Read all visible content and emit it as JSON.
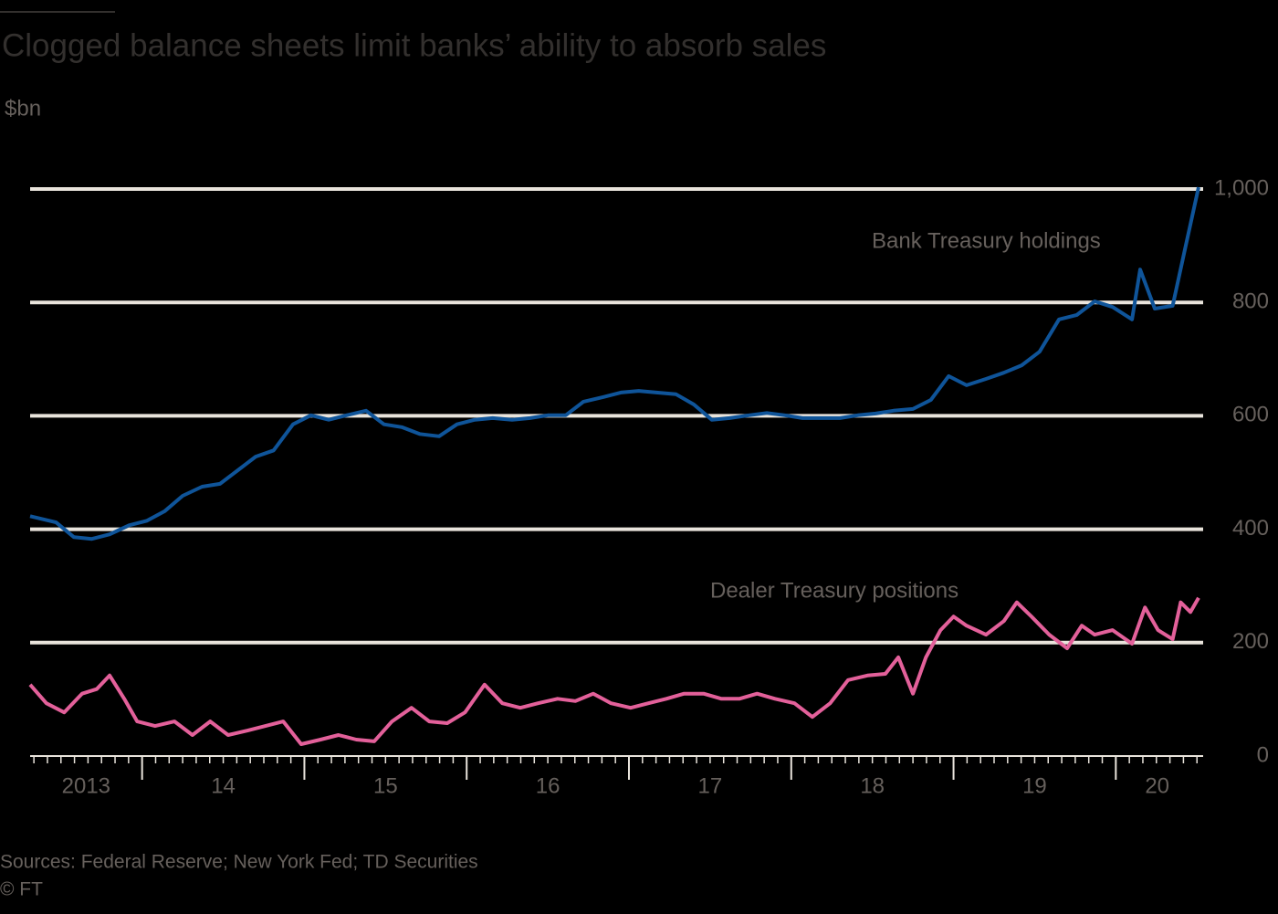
{
  "chart_data": {
    "type": "line",
    "title": "Clogged balance sheets limit banks’ ability to absorb sales",
    "y_label": "$bn",
    "source": "Sources: Federal Reserve; New York Fed; TD Securities",
    "credit": "© FT",
    "xlim": [
      2013.31,
      2020.51
    ],
    "xticks": [
      {
        "value": 2013,
        "label": "2013"
      },
      {
        "value": 2014,
        "label": "14"
      },
      {
        "value": 2015,
        "label": "15"
      },
      {
        "value": 2016,
        "label": "16"
      },
      {
        "value": 2017,
        "label": "17"
      },
      {
        "value": 2018,
        "label": "18"
      },
      {
        "value": 2019,
        "label": "19"
      },
      {
        "value": 2020,
        "label": "20"
      }
    ],
    "ylim": [
      0,
      1000
    ],
    "yticks": [
      0,
      200,
      400,
      600,
      800,
      {
        "value": 1000,
        "label": "1,000"
      }
    ],
    "grid": true,
    "series": [
      {
        "name": "Bank Treasury holdings",
        "color": "#0f5499",
        "x": [
          2013.31,
          2013.47,
          2013.58,
          2013.69,
          2013.8,
          2013.92,
          2014.03,
          2014.14,
          2014.25,
          2014.37,
          2014.48,
          2014.59,
          2014.7,
          2014.81,
          2014.93,
          2015.04,
          2015.15,
          2015.26,
          2015.38,
          2015.49,
          2015.6,
          2015.71,
          2015.83,
          2015.94,
          2016.05,
          2016.16,
          2016.28,
          2016.39,
          2016.5,
          2016.61,
          2016.72,
          2016.84,
          2016.95,
          2017.06,
          2017.17,
          2017.29,
          2017.4,
          2017.51,
          2017.62,
          2017.74,
          2017.85,
          2017.96,
          2018.07,
          2018.19,
          2018.3,
          2018.41,
          2018.52,
          2018.63,
          2018.75,
          2018.86,
          2018.97,
          2019.08,
          2019.2,
          2019.31,
          2019.42,
          2019.53,
          2019.65,
          2019.76,
          2019.87,
          2019.98,
          2020.1,
          2020.15,
          2020.24,
          2020.35,
          2020.43,
          2020.51
        ],
        "values": [
          423,
          412,
          386,
          383,
          391,
          407,
          415,
          432,
          459,
          475,
          480,
          504,
          528,
          539,
          585,
          601,
          593,
          601,
          609,
          585,
          580,
          568,
          564,
          585,
          593,
          596,
          593,
          596,
          601,
          601,
          625,
          633,
          641,
          644,
          641,
          638,
          620,
          593,
          596,
          601,
          605,
          601,
          596,
          596,
          596,
          601,
          604,
          609,
          612,
          628,
          670,
          654,
          665,
          676,
          689,
          713,
          770,
          778,
          802,
          792,
          770,
          858,
          789,
          794,
          899,
          1003
        ]
      },
      {
        "name": "Dealer Treasury positions",
        "color": "#e3609a",
        "x": [
          2013.31,
          2013.41,
          2013.52,
          2013.63,
          2013.72,
          2013.8,
          2013.89,
          2013.97,
          2014.08,
          2014.2,
          2014.31,
          2014.42,
          2014.53,
          2014.65,
          2014.76,
          2014.87,
          2014.98,
          2015.1,
          2015.21,
          2015.32,
          2015.43,
          2015.54,
          2015.66,
          2015.77,
          2015.88,
          2015.99,
          2016.11,
          2016.22,
          2016.33,
          2016.44,
          2016.56,
          2016.67,
          2016.78,
          2016.89,
          2017.01,
          2017.12,
          2017.23,
          2017.34,
          2017.46,
          2017.57,
          2017.68,
          2017.79,
          2017.9,
          2018.02,
          2018.13,
          2018.24,
          2018.35,
          2018.47,
          2018.58,
          2018.66,
          2018.75,
          2018.83,
          2018.92,
          2019.0,
          2019.08,
          2019.2,
          2019.31,
          2019.39,
          2019.48,
          2019.59,
          2019.7,
          2019.79,
          2019.87,
          2019.98,
          2020.1,
          2020.18,
          2020.26,
          2020.35,
          2020.4,
          2020.46,
          2020.51
        ],
        "values": [
          126,
          93,
          77,
          110,
          118,
          142,
          101,
          61,
          53,
          61,
          37,
          61,
          37,
          45,
          53,
          61,
          21,
          29,
          37,
          29,
          26,
          61,
          85,
          61,
          58,
          77,
          126,
          93,
          85,
          93,
          101,
          97,
          110,
          93,
          85,
          93,
          101,
          110,
          110,
          101,
          101,
          110,
          101,
          93,
          69,
          93,
          134,
          142,
          145,
          174,
          110,
          174,
          222,
          246,
          230,
          214,
          238,
          271,
          246,
          214,
          190,
          230,
          214,
          222,
          198,
          262,
          222,
          206,
          271,
          254,
          279
        ]
      }
    ]
  }
}
